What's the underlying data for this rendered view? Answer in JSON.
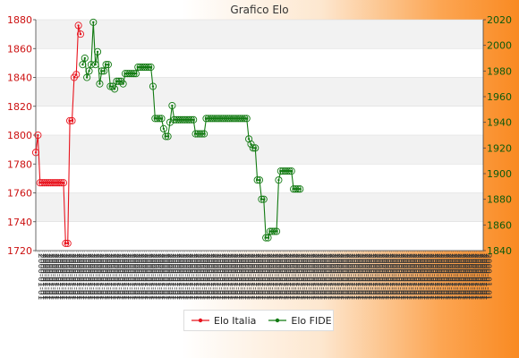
{
  "chart_data": {
    "type": "line",
    "title": "Grafico Elo",
    "xlabel": "",
    "ylabel_left": "",
    "ylabel_right": "",
    "y_left_lim": [
      1720,
      1880
    ],
    "y_left_ticks": [
      1720,
      1740,
      1760,
      1780,
      1800,
      1820,
      1840,
      1860,
      1880
    ],
    "y_right_lim": [
      1840,
      2020
    ],
    "y_right_ticks": [
      1840,
      1860,
      1880,
      1900,
      1920,
      1940,
      1960,
      1980,
      2000,
      2020
    ],
    "grid": "horizontal bands",
    "legend_position": "bottom",
    "x_points": 211,
    "x_tick_label_sample": "2000-01-01",
    "series": [
      {
        "name": "Elo Italia",
        "axis": "left",
        "color": "#e8141e",
        "points": [
          [
            0,
            1788
          ],
          [
            1,
            1800
          ],
          [
            2,
            1767
          ],
          [
            3,
            1767
          ],
          [
            4,
            1767
          ],
          [
            5,
            1767
          ],
          [
            6,
            1767
          ],
          [
            7,
            1767
          ],
          [
            8,
            1767
          ],
          [
            9,
            1767
          ],
          [
            10,
            1767
          ],
          [
            11,
            1767
          ],
          [
            12,
            1767
          ],
          [
            13,
            1767
          ],
          [
            14,
            1725
          ],
          [
            15,
            1725
          ],
          [
            16,
            1810
          ],
          [
            17,
            1810
          ],
          [
            18,
            1840
          ],
          [
            19,
            1842
          ],
          [
            20,
            1876
          ],
          [
            21,
            1870
          ]
        ]
      },
      {
        "name": "Elo FIDE",
        "axis": "right",
        "color": "#127a12",
        "points": [
          [
            22,
            1985
          ],
          [
            23,
            1990
          ],
          [
            24,
            1975
          ],
          [
            25,
            1980
          ],
          [
            26,
            1985
          ],
          [
            27,
            2018
          ],
          [
            28,
            1985
          ],
          [
            29,
            1995
          ],
          [
            30,
            1970
          ],
          [
            31,
            1980
          ],
          [
            32,
            1980
          ],
          [
            33,
            1985
          ],
          [
            34,
            1985
          ],
          [
            35,
            1968
          ],
          [
            36,
            1968
          ],
          [
            37,
            1966
          ],
          [
            38,
            1972
          ],
          [
            39,
            1972
          ],
          [
            40,
            1972
          ],
          [
            41,
            1970
          ],
          [
            42,
            1978
          ],
          [
            43,
            1978
          ],
          [
            44,
            1978
          ],
          [
            45,
            1978
          ],
          [
            46,
            1978
          ],
          [
            47,
            1978
          ],
          [
            48,
            1983
          ],
          [
            49,
            1983
          ],
          [
            50,
            1983
          ],
          [
            51,
            1983
          ],
          [
            52,
            1983
          ],
          [
            53,
            1983
          ],
          [
            54,
            1983
          ],
          [
            55,
            1968
          ],
          [
            56,
            1943
          ],
          [
            57,
            1943
          ],
          [
            58,
            1943
          ],
          [
            59,
            1943
          ],
          [
            60,
            1935
          ],
          [
            61,
            1929
          ],
          [
            62,
            1929
          ],
          [
            63,
            1940
          ],
          [
            64,
            1953
          ],
          [
            65,
            1942
          ],
          [
            66,
            1942
          ],
          [
            67,
            1942
          ],
          [
            68,
            1942
          ],
          [
            69,
            1942
          ],
          [
            70,
            1942
          ],
          [
            71,
            1942
          ],
          [
            72,
            1942
          ],
          [
            73,
            1942
          ],
          [
            74,
            1942
          ],
          [
            75,
            1931
          ],
          [
            76,
            1931
          ],
          [
            77,
            1931
          ],
          [
            78,
            1931
          ],
          [
            79,
            1931
          ],
          [
            80,
            1943
          ],
          [
            81,
            1943
          ],
          [
            82,
            1943
          ],
          [
            83,
            1943
          ],
          [
            84,
            1943
          ],
          [
            85,
            1943
          ],
          [
            86,
            1943
          ],
          [
            87,
            1943
          ],
          [
            88,
            1943
          ],
          [
            89,
            1943
          ],
          [
            90,
            1943
          ],
          [
            91,
            1943
          ],
          [
            92,
            1943
          ],
          [
            93,
            1943
          ],
          [
            94,
            1943
          ],
          [
            95,
            1943
          ],
          [
            96,
            1943
          ],
          [
            97,
            1943
          ],
          [
            98,
            1943
          ],
          [
            99,
            1943
          ],
          [
            100,
            1927
          ],
          [
            101,
            1923
          ],
          [
            102,
            1920
          ],
          [
            103,
            1920
          ],
          [
            104,
            1895
          ],
          [
            105,
            1895
          ],
          [
            106,
            1880
          ],
          [
            107,
            1880
          ],
          [
            108,
            1850
          ],
          [
            109,
            1850
          ],
          [
            110,
            1855
          ],
          [
            111,
            1855
          ],
          [
            112,
            1855
          ],
          [
            113,
            1855
          ],
          [
            114,
            1895
          ],
          [
            115,
            1902
          ],
          [
            116,
            1902
          ],
          [
            117,
            1902
          ],
          [
            118,
            1902
          ],
          [
            119,
            1902
          ],
          [
            120,
            1902
          ],
          [
            121,
            1888
          ],
          [
            122,
            1888
          ],
          [
            123,
            1888
          ],
          [
            124,
            1888
          ]
        ]
      }
    ]
  }
}
